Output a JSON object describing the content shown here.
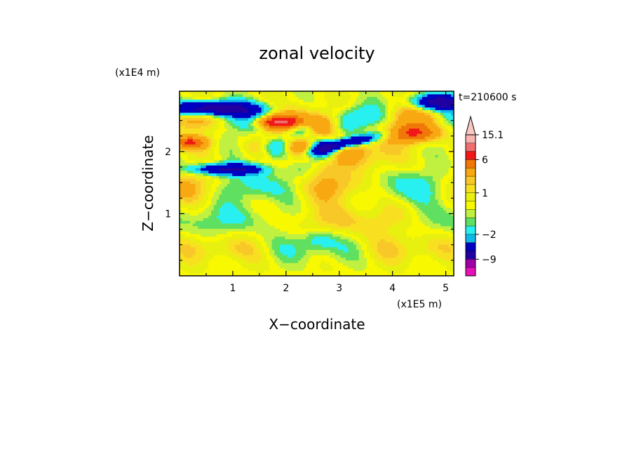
{
  "chart_data": {
    "type": "heatmap",
    "title": "zonal velocity",
    "xlabel": "X−coordinate",
    "ylabel": "Z−coordinate",
    "x_unit": "(x1E5 m)",
    "y_unit": "(x1E4 m)",
    "time_label": "t=210600 s",
    "xlim": [
      0,
      5.15
    ],
    "ylim": [
      0,
      2.97
    ],
    "x_ticks": [
      1,
      2,
      3,
      4,
      5
    ],
    "y_ticks": [
      1,
      2
    ],
    "grid": false,
    "colorbar": {
      "labels": [
        {
          "text": "15.1",
          "value": 15.1
        },
        {
          "text": "6",
          "value": 6
        },
        {
          "text": "1",
          "value": 1
        },
        {
          "text": "−2",
          "value": -2
        },
        {
          "text": "−9",
          "value": -9
        }
      ],
      "levels": [
        {
          "lo": 15.1,
          "hi": 20,
          "color": "#f8c8c0",
          "type": "arrow"
        },
        {
          "lo": 12,
          "hi": 15.1,
          "color": "#f8b4b0"
        },
        {
          "lo": 9,
          "hi": 12,
          "color": "#f07070"
        },
        {
          "lo": 6,
          "hi": 9,
          "color": "#f01818"
        },
        {
          "lo": 4,
          "hi": 6,
          "color": "#f07808"
        },
        {
          "lo": 2,
          "hi": 4,
          "color": "#f8a810"
        },
        {
          "lo": 1.5,
          "hi": 2,
          "color": "#f8c828"
        },
        {
          "lo": 1,
          "hi": 1.5,
          "color": "#f8e020"
        },
        {
          "lo": 0.5,
          "hi": 1,
          "color": "#e8f010"
        },
        {
          "lo": 0,
          "hi": 0.5,
          "color": "#f8f800"
        },
        {
          "lo": -0.5,
          "hi": 0,
          "color": "#c0f040"
        },
        {
          "lo": -1,
          "hi": -0.5,
          "color": "#60e060"
        },
        {
          "lo": -2,
          "hi": -1,
          "color": "#28f0f0"
        },
        {
          "lo": -3,
          "hi": -2,
          "color": "#10b8e8"
        },
        {
          "lo": -6,
          "hi": -3,
          "color": "#0000c0"
        },
        {
          "lo": -9,
          "hi": -6,
          "color": "#2000a0"
        },
        {
          "lo": -12,
          "hi": -9,
          "color": "#a000a8"
        },
        {
          "lo": -16,
          "hi": -12,
          "color": "#e810b8"
        }
      ]
    }
  }
}
